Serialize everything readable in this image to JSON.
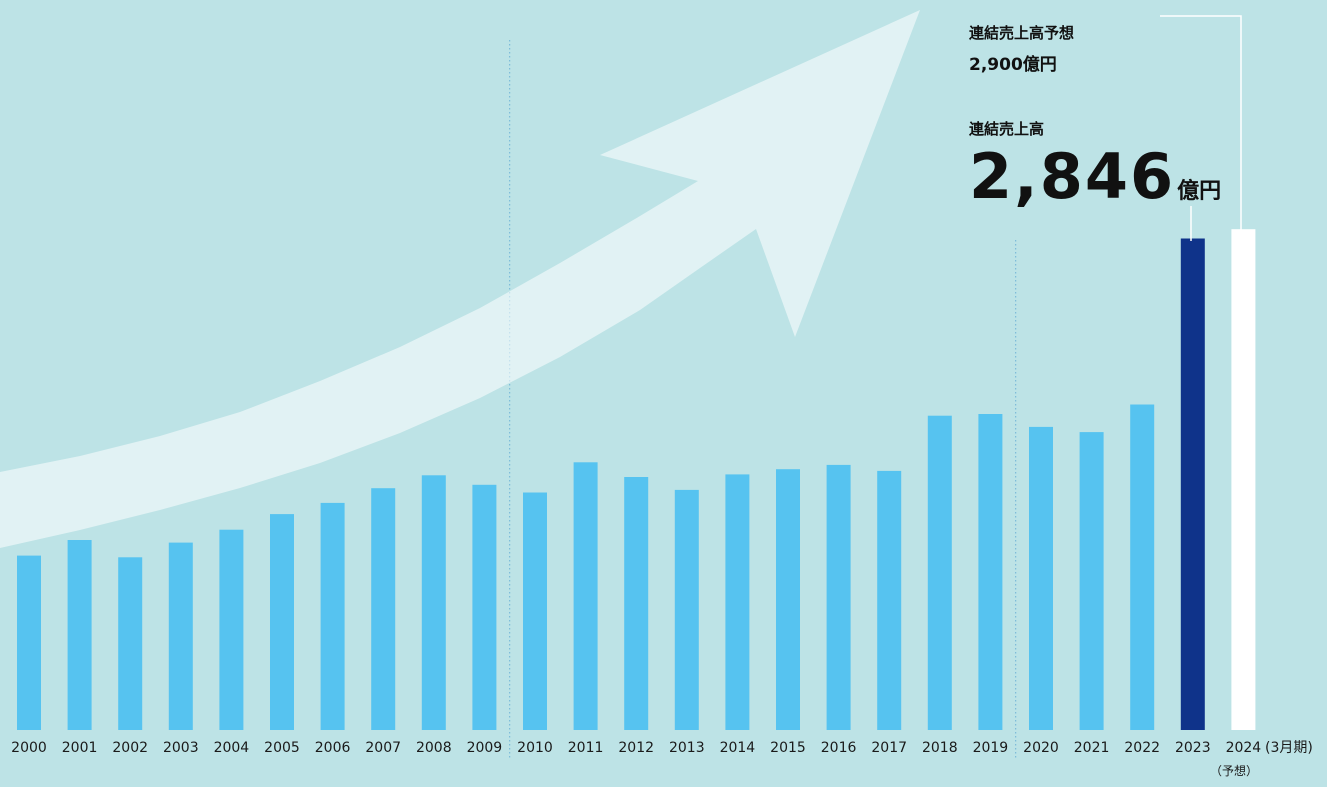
{
  "chart_data": {
    "type": "bar",
    "categories": [
      "2000",
      "2001",
      "2002",
      "2003",
      "2004",
      "2005",
      "2006",
      "2007",
      "2008",
      "2009",
      "2010",
      "2011",
      "2012",
      "2013",
      "2014",
      "2015",
      "2016",
      "2017",
      "2018",
      "2019",
      "2020",
      "2021",
      "2022",
      "2023",
      "2024"
    ],
    "values": [
      1010,
      1100,
      1000,
      1085,
      1160,
      1250,
      1315,
      1400,
      1475,
      1420,
      1375,
      1550,
      1465,
      1390,
      1480,
      1510,
      1535,
      1500,
      1820,
      1830,
      1755,
      1725,
      1885,
      2846,
      2900
    ],
    "highlight_colors": {
      "default": "#56c3f0",
      "actual_2023": "#0f338a",
      "forecast_2024": "#ffffff"
    },
    "x_axis_note": "(3月期)",
    "forecast_tick_note": "（予想）"
  },
  "annotations": {
    "forecast_label": "連結売上高予想",
    "forecast_value": "2,900億円",
    "actual_label": "連結売上高",
    "actual_value": "2,846",
    "actual_unit": "億円"
  }
}
